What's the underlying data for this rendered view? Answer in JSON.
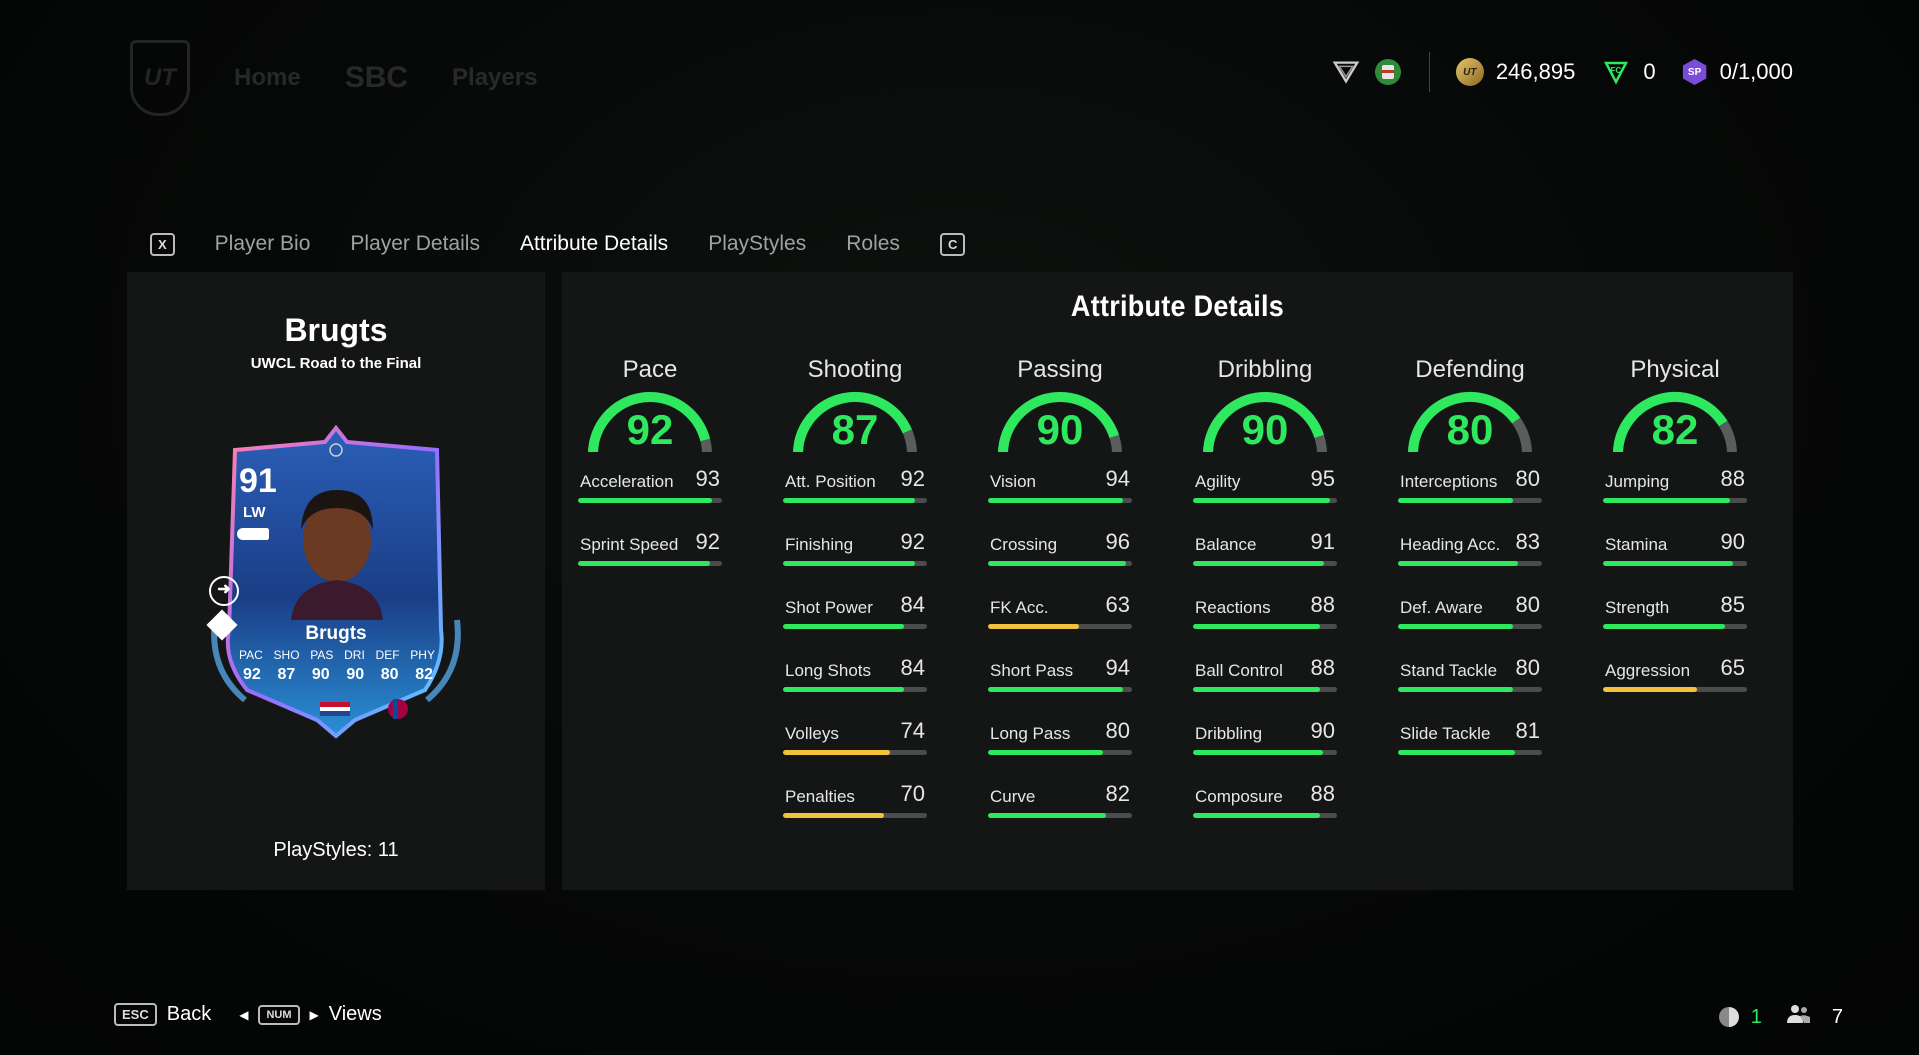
{
  "topnav": {
    "items": [
      "Home",
      "SBC",
      "Players"
    ]
  },
  "currency": {
    "coins": "246,895",
    "points": "0",
    "sp": "0/1,000"
  },
  "tabs": {
    "left_key": "X",
    "items": [
      {
        "label": "Player Bio",
        "active": false
      },
      {
        "label": "Player Details",
        "active": false
      },
      {
        "label": "Attribute Details",
        "active": true
      },
      {
        "label": "PlayStyles",
        "active": false
      },
      {
        "label": "Roles",
        "active": false
      }
    ],
    "right_key": "C"
  },
  "player": {
    "name": "Brugts",
    "subtitle": "UWCL Road to the Final",
    "playstyles": "PlayStyles: 11",
    "card": {
      "rating": "91",
      "position": "LW",
      "name": "Brugts",
      "stat_labels": [
        "PAC",
        "SHO",
        "PAS",
        "DRI",
        "DEF",
        "PHY"
      ],
      "stat_values": [
        "92",
        "87",
        "90",
        "90",
        "80",
        "82"
      ]
    }
  },
  "attributes": {
    "title": "Attribute Details",
    "colors": {
      "green": "#2ee85e",
      "yellow": "#f2c23a",
      "track": "#4a4d4c"
    },
    "categories": [
      {
        "name": "Pace",
        "value": 92,
        "attrs": [
          {
            "label": "Acceleration",
            "value": 93
          },
          {
            "label": "Sprint Speed",
            "value": 92
          }
        ]
      },
      {
        "name": "Shooting",
        "value": 87,
        "attrs": [
          {
            "label": "Att. Position",
            "value": 92
          },
          {
            "label": "Finishing",
            "value": 92
          },
          {
            "label": "Shot Power",
            "value": 84
          },
          {
            "label": "Long Shots",
            "value": 84
          },
          {
            "label": "Volleys",
            "value": 74
          },
          {
            "label": "Penalties",
            "value": 70
          }
        ]
      },
      {
        "name": "Passing",
        "value": 90,
        "attrs": [
          {
            "label": "Vision",
            "value": 94
          },
          {
            "label": "Crossing",
            "value": 96
          },
          {
            "label": "FK Acc.",
            "value": 63
          },
          {
            "label": "Short Pass",
            "value": 94
          },
          {
            "label": "Long Pass",
            "value": 80
          },
          {
            "label": "Curve",
            "value": 82
          }
        ]
      },
      {
        "name": "Dribbling",
        "value": 90,
        "attrs": [
          {
            "label": "Agility",
            "value": 95
          },
          {
            "label": "Balance",
            "value": 91
          },
          {
            "label": "Reactions",
            "value": 88
          },
          {
            "label": "Ball Control",
            "value": 88
          },
          {
            "label": "Dribbling",
            "value": 90
          },
          {
            "label": "Composure",
            "value": 88
          }
        ]
      },
      {
        "name": "Defending",
        "value": 80,
        "attrs": [
          {
            "label": "Interceptions",
            "value": 80
          },
          {
            "label": "Heading Acc.",
            "value": 83
          },
          {
            "label": "Def. Aware",
            "value": 80
          },
          {
            "label": "Stand Tackle",
            "value": 80
          },
          {
            "label": "Slide Tackle",
            "value": 81
          }
        ]
      },
      {
        "name": "Physical",
        "value": 82,
        "attrs": [
          {
            "label": "Jumping",
            "value": 88
          },
          {
            "label": "Stamina",
            "value": 90
          },
          {
            "label": "Strength",
            "value": 85
          },
          {
            "label": "Aggression",
            "value": 65
          }
        ]
      }
    ]
  },
  "footer": {
    "back_key": "ESC",
    "back_label": "Back",
    "views_key": "NUM",
    "views_label": "Views",
    "count_a": "1",
    "count_b": "7"
  }
}
